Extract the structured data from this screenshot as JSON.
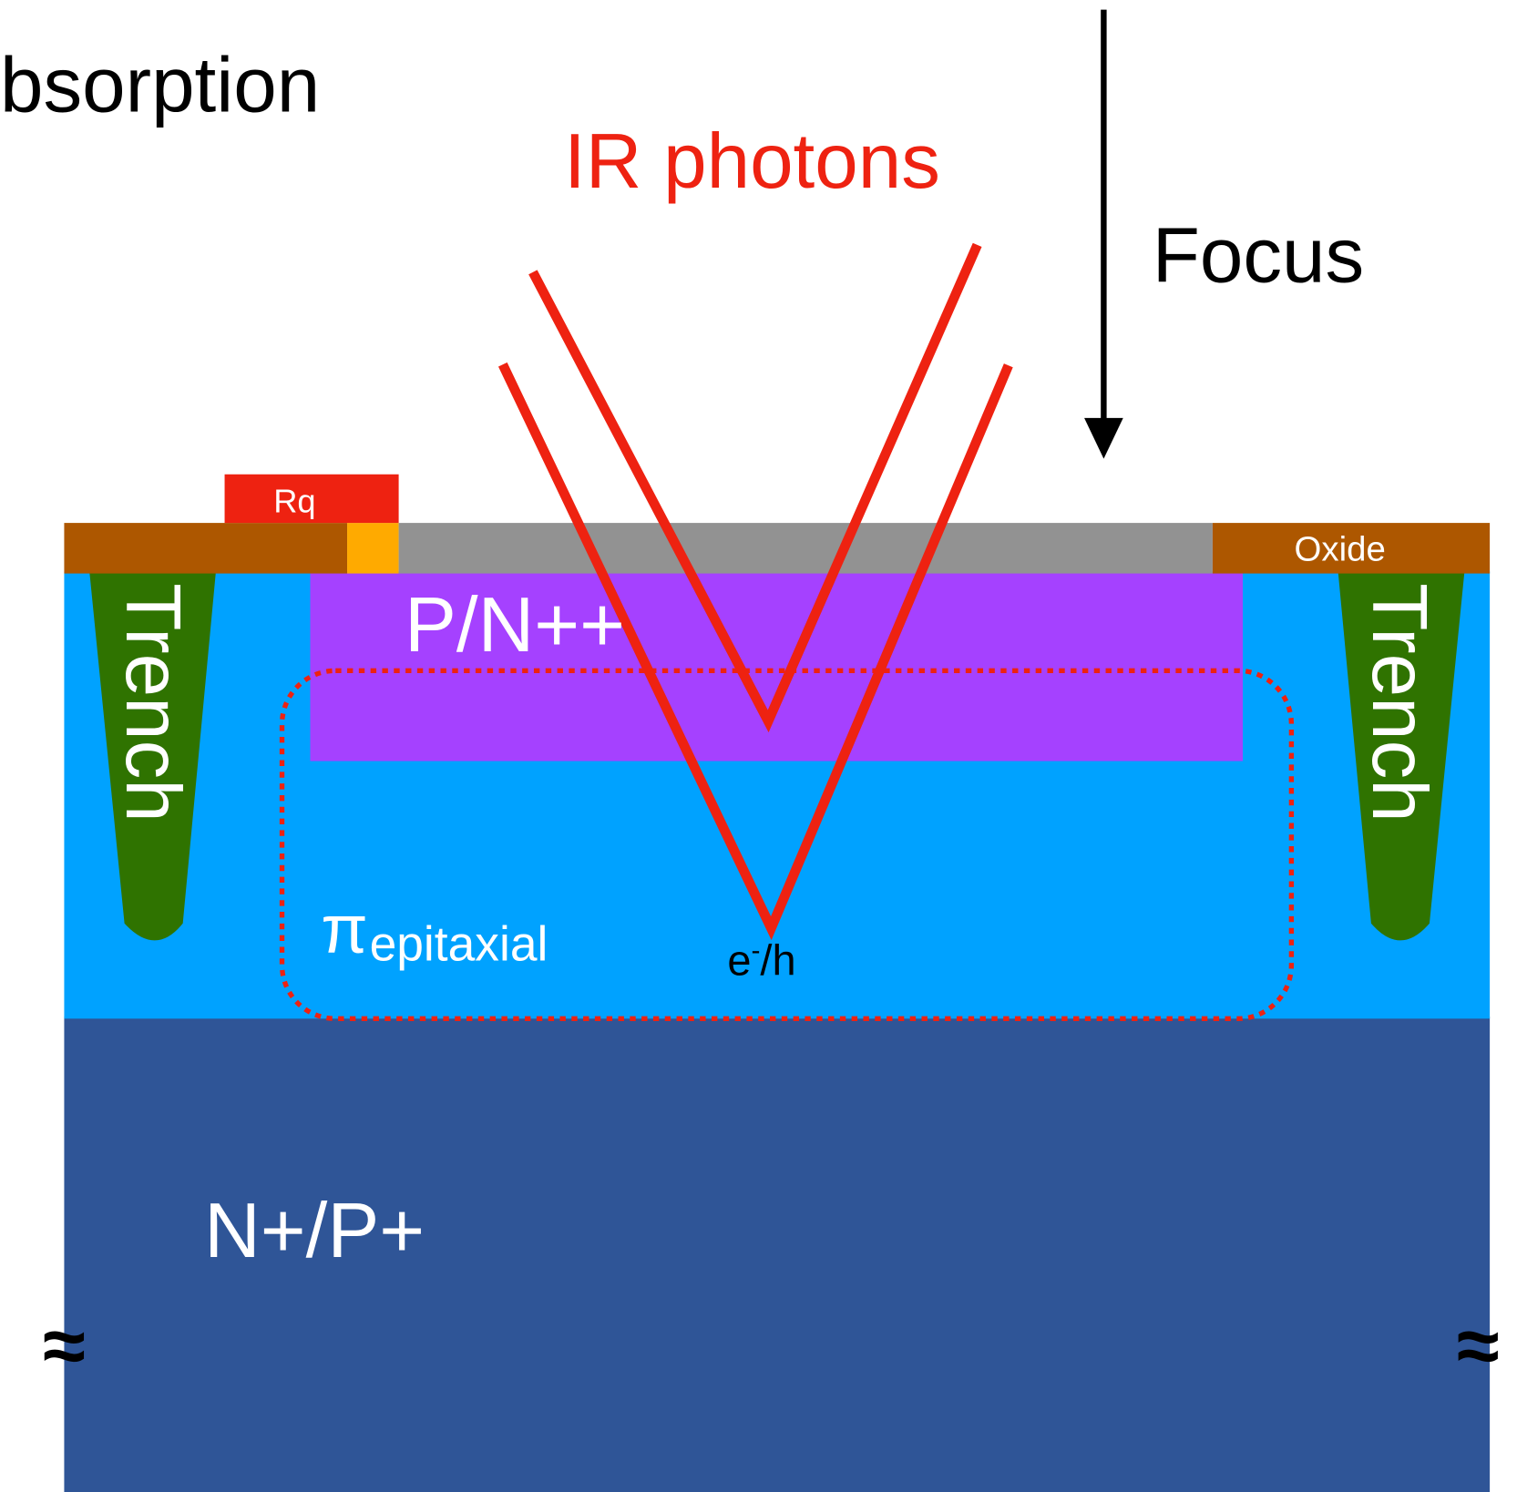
{
  "labels": {
    "absorption": "bsorption",
    "ir_photons": "IR photons",
    "focus": "Focus",
    "rq": "Rq",
    "oxide": "Oxide",
    "trench_left": "Trench",
    "trench_right": "Trench",
    "pn": "P/N++",
    "pi": "π",
    "epitaxial": "epitaxial",
    "carrier": {
      "e": "e",
      "charge": "-",
      "h": "/h"
    },
    "substrate": "N+/P+",
    "break_left": "≈",
    "break_right": "≈"
  }
}
